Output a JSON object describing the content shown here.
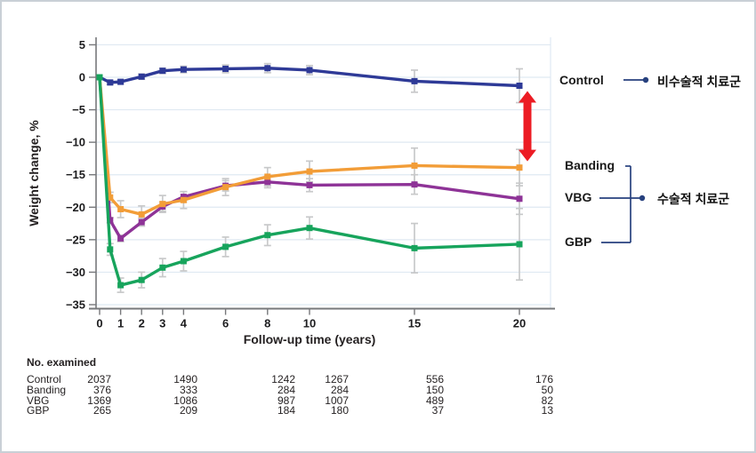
{
  "chart_data": {
    "type": "line",
    "title": "",
    "xlabel": "Follow-up time (years)",
    "ylabel": "Weight change, %",
    "x": [
      0,
      0.5,
      1,
      2,
      3,
      4,
      6,
      8,
      10,
      15,
      20
    ],
    "x_ticks": [
      0,
      1,
      2,
      3,
      4,
      6,
      8,
      10,
      15,
      20
    ],
    "y_ticks": [
      5,
      0,
      -5,
      -10,
      -15,
      -20,
      -25,
      -30,
      -35
    ],
    "xlim": [
      0,
      20
    ],
    "ylim": [
      -35,
      5
    ],
    "grid": "horizontal",
    "legend_position": "right-of-lines",
    "series": [
      {
        "name": "Control",
        "color": "#2e3a97",
        "values": [
          0,
          -0.8,
          -0.7,
          0.1,
          1.0,
          1.2,
          1.3,
          1.4,
          1.1,
          -0.6,
          -1.3
        ],
        "err": [
          0,
          0.3,
          0.3,
          0.4,
          0.4,
          0.5,
          0.6,
          0.7,
          0.7,
          1.7,
          2.6
        ]
      },
      {
        "name": "Banding",
        "color": "#f29d38",
        "values": [
          0,
          -18.5,
          -20.3,
          -21.1,
          -19.5,
          -18.9,
          -16.9,
          -15.3,
          -14.5,
          -13.6,
          -13.9
        ],
        "err": [
          0,
          0.8,
          1.3,
          1.3,
          1.3,
          1.3,
          1.3,
          1.4,
          1.6,
          2.7,
          2.8
        ]
      },
      {
        "name": "VBG",
        "color": "#8e3397",
        "values": [
          0,
          -22.0,
          -24.8,
          -22.3,
          -19.9,
          -18.4,
          -16.7,
          -16.1,
          -16.6,
          -16.5,
          -18.7
        ],
        "err": [
          0,
          0.4,
          0.5,
          0.6,
          0.7,
          0.8,
          0.8,
          0.9,
          1.0,
          1.5,
          2.4
        ]
      },
      {
        "name": "GBP",
        "color": "#17a45c",
        "values": [
          0,
          -26.5,
          -32.0,
          -31.2,
          -29.3,
          -28.3,
          -26.1,
          -24.3,
          -23.2,
          -26.3,
          -25.7
        ],
        "err": [
          0,
          0.9,
          1.1,
          1.2,
          1.4,
          1.5,
          1.5,
          1.6,
          1.7,
          3.8,
          5.5
        ]
      }
    ]
  },
  "annotations": {
    "nonsurgical_group": "비수술적 치료군",
    "surgical_group": "수술적 치료군",
    "arrow": {
      "color": "#ec1c24",
      "from_series": "Control",
      "to_series": "Banding",
      "at_year": 20
    },
    "connector_color": "#27417e"
  },
  "table": {
    "title": "No. examined",
    "rows": [
      {
        "label": "Control",
        "values": [
          "2037",
          "1490",
          "1242",
          "1267",
          "556",
          "176"
        ]
      },
      {
        "label": "Banding",
        "values": [
          "376",
          "333",
          "284",
          "284",
          "150",
          "50"
        ]
      },
      {
        "label": "VBG",
        "values": [
          "1369",
          "1086",
          "987",
          "1007",
          "489",
          "82"
        ]
      },
      {
        "label": "GBP",
        "values": [
          "265",
          "209",
          "184",
          "180",
          "37",
          "13"
        ]
      }
    ]
  }
}
